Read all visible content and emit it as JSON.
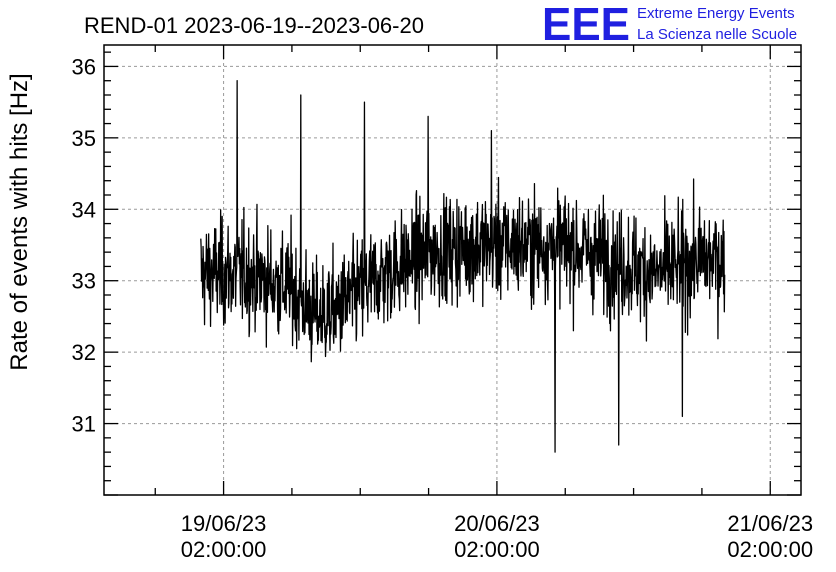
{
  "header": {
    "title": "REND-01 2023-06-19--2023-06-20",
    "logo_mark": "EEE",
    "logo_line1": "Extreme Energy Events",
    "logo_line2": "La Scienza nelle Scuole",
    "logo_color": "#1f1fe0"
  },
  "chart_data": {
    "type": "line",
    "ylabel": "Rate of events with hits [Hz]",
    "ylim": [
      30.0,
      36.3
    ],
    "xlim_hours": [
      -10.5,
      50.7
    ],
    "yticks": [
      31,
      32,
      33,
      34,
      35,
      36
    ],
    "xticks": [
      {
        "hours": 0,
        "line1": "19/06/23",
        "line2": "02:00:00"
      },
      {
        "hours": 24,
        "line1": "20/06/23",
        "line2": "02:00:00"
      },
      {
        "hours": 48,
        "line1": "21/06/23",
        "line2": "02:00:00"
      }
    ],
    "x_minor_step_hours": 6,
    "grid": true,
    "line_color": "#000000",
    "series": [
      {
        "x_start_hours": -2,
        "x_end_hours": 44,
        "mean_profile_hours": [
          -2,
          2,
          6,
          8,
          10,
          14,
          18,
          22,
          26,
          30,
          34,
          38,
          42,
          44
        ],
        "mean_profile_values": [
          33.1,
          33.1,
          32.9,
          32.5,
          32.6,
          33.1,
          33.4,
          33.5,
          33.5,
          33.5,
          33.3,
          33.1,
          33.3,
          33.3
        ],
        "peak_values": [
          35.8,
          35.6,
          35.5,
          35.3,
          35.1,
          30.6,
          30.7,
          31.1
        ]
      }
    ]
  }
}
